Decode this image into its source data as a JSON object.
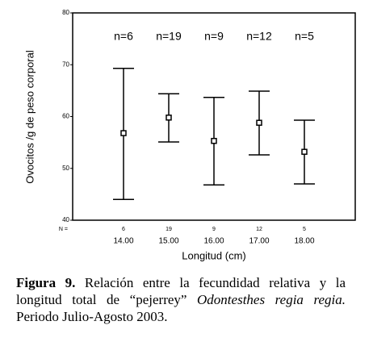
{
  "chart_data": {
    "type": "errorbar",
    "categories": [
      "14.00",
      "15.00",
      "16.00",
      "17.00",
      "18.00"
    ],
    "mean": [
      56.8,
      59.8,
      55.3,
      58.8,
      53.2
    ],
    "upper": [
      69.3,
      64.4,
      63.7,
      64.9,
      59.3
    ],
    "lower": [
      44.0,
      55.1,
      46.8,
      52.6,
      47.0
    ],
    "n_labels": [
      "n=6",
      "n=19",
      "n=9",
      "n=12",
      "n=5"
    ],
    "n": [
      6,
      19,
      9,
      12,
      5
    ],
    "n_axis_label": "N =",
    "xlabel": "Longitud (cm)",
    "ylabel": "Ovocitos /g de peso corporal",
    "ylim": [
      40,
      80
    ],
    "yticks": [
      40,
      50,
      60,
      70,
      80
    ],
    "color": "#000000"
  },
  "caption": {
    "label": "Figura 9.",
    "text": " Relación entre la fecundidad relativa y la longitud total de “pejerrey” ",
    "species": "Odontesthes regia regia.",
    "period": " Periodo Julio-Agosto 2003."
  }
}
